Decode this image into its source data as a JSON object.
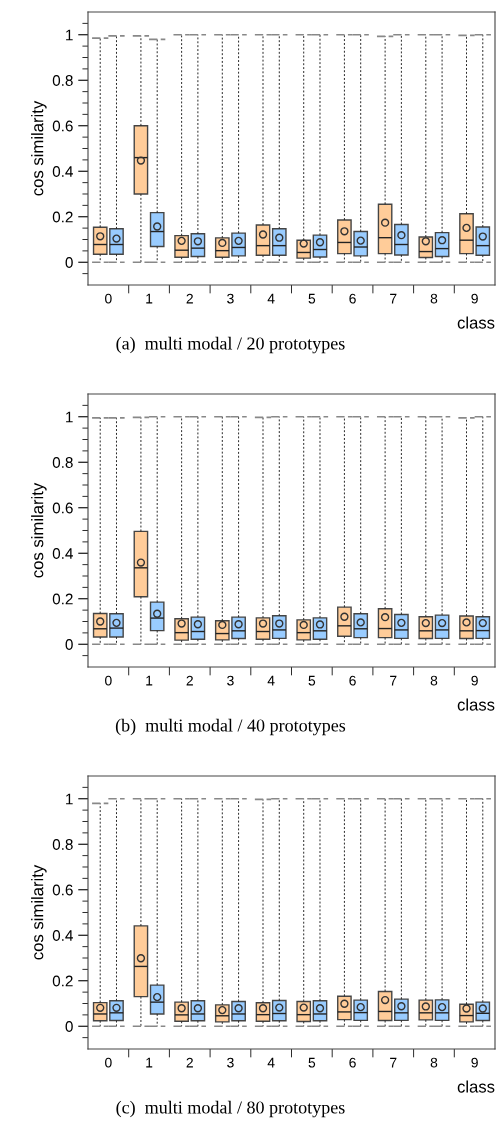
{
  "chart_data": [
    {
      "type": "box",
      "title": "(a)  multi modal / 20 prototypes",
      "xlabel": "class",
      "ylabel": "cos similarity",
      "categories": [
        "0",
        "1",
        "2",
        "3",
        "4",
        "5",
        "6",
        "7",
        "8",
        "9"
      ],
      "ylim": [
        -0.1,
        1.1
      ],
      "yticks": [
        {
          "value": -0.05,
          "label": null
        },
        0,
        {
          "value": 0.05,
          "label": null
        },
        {
          "value": 0.1,
          "label": null
        },
        {
          "value": 0.15,
          "label": null
        },
        0.2,
        {
          "value": 0.25,
          "label": null
        },
        {
          "value": 0.3,
          "label": null
        },
        {
          "value": 0.35,
          "label": null
        },
        0.4,
        {
          "value": 0.45,
          "label": null
        },
        {
          "value": 0.5,
          "label": null
        },
        {
          "value": 0.55,
          "label": null
        },
        0.6,
        {
          "value": 0.65,
          "label": null
        },
        {
          "value": 0.7,
          "label": null
        },
        {
          "value": 0.75,
          "label": null
        },
        0.8,
        {
          "value": 0.85,
          "label": null
        },
        {
          "value": 0.9,
          "label": null
        },
        {
          "value": 0.95,
          "label": null
        },
        1,
        {
          "value": 1.05,
          "label": null
        }
      ],
      "series": [
        {
          "color": "#ffcc99",
          "boxes": [
            {
              "low": 0,
              "q1": 0.035,
              "median": 0.078,
              "q3": 0.154,
              "high": 0.985,
              "mean": 0.114
            },
            {
              "low": 0,
              "q1": 0.3,
              "median": 0.46,
              "q3": 0.6,
              "high": 0.995,
              "mean": 0.447
            },
            {
              "low": 0,
              "q1": 0.022,
              "median": 0.053,
              "q3": 0.117,
              "high": 1.0,
              "mean": 0.094
            },
            {
              "low": 0,
              "q1": 0.022,
              "median": 0.051,
              "q3": 0.107,
              "high": 1.0,
              "mean": 0.085
            },
            {
              "low": 0,
              "q1": 0.031,
              "median": 0.073,
              "q3": 0.164,
              "high": 1.0,
              "mean": 0.122
            },
            {
              "low": 0,
              "q1": 0.018,
              "median": 0.043,
              "q3": 0.097,
              "high": 1.0,
              "mean": 0.082
            },
            {
              "low": 0,
              "q1": 0.038,
              "median": 0.087,
              "q3": 0.186,
              "high": 1.0,
              "mean": 0.136
            },
            {
              "low": 0,
              "q1": 0.038,
              "median": 0.108,
              "q3": 0.255,
              "high": 0.993,
              "mean": 0.174
            },
            {
              "low": 0,
              "q1": 0.021,
              "median": 0.047,
              "q3": 0.111,
              "high": 1.0,
              "mean": 0.092
            },
            {
              "low": 0,
              "q1": 0.038,
              "median": 0.097,
              "q3": 0.213,
              "high": 0.997,
              "mean": 0.151
            }
          ]
        },
        {
          "color": "#99ccff",
          "boxes": [
            {
              "low": 0,
              "q1": 0.035,
              "median": 0.078,
              "q3": 0.147,
              "high": 0.995,
              "mean": 0.104
            },
            {
              "low": 0,
              "q1": 0.069,
              "median": 0.135,
              "q3": 0.218,
              "high": 0.98,
              "mean": 0.157
            },
            {
              "low": 0,
              "q1": 0.025,
              "median": 0.062,
              "q3": 0.125,
              "high": 1.0,
              "mean": 0.092
            },
            {
              "low": 0,
              "q1": 0.028,
              "median": 0.065,
              "q3": 0.128,
              "high": 1.0,
              "mean": 0.094
            },
            {
              "low": 0,
              "q1": 0.031,
              "median": 0.073,
              "q3": 0.147,
              "high": 1.0,
              "mean": 0.108
            },
            {
              "low": 0,
              "q1": 0.023,
              "median": 0.056,
              "q3": 0.119,
              "high": 1.0,
              "mean": 0.088
            },
            {
              "low": 0,
              "q1": 0.028,
              "median": 0.067,
              "q3": 0.135,
              "high": 1.0,
              "mean": 0.095
            },
            {
              "low": 0,
              "q1": 0.032,
              "median": 0.078,
              "q3": 0.166,
              "high": 1.0,
              "mean": 0.119
            },
            {
              "low": 0,
              "q1": 0.025,
              "median": 0.06,
              "q3": 0.13,
              "high": 1.0,
              "mean": 0.097
            },
            {
              "low": 0,
              "q1": 0.031,
              "median": 0.073,
              "q3": 0.155,
              "high": 1.0,
              "mean": 0.113
            }
          ]
        }
      ]
    },
    {
      "type": "box",
      "title": "(b)  multi modal / 40 prototypes",
      "xlabel": "class",
      "ylabel": "cos similarity",
      "categories": [
        "0",
        "1",
        "2",
        "3",
        "4",
        "5",
        "6",
        "7",
        "8",
        "9"
      ],
      "ylim": [
        -0.1,
        1.1
      ],
      "yticks": [
        {
          "value": -0.05,
          "label": null
        },
        0,
        {
          "value": 0.05,
          "label": null
        },
        {
          "value": 0.1,
          "label": null
        },
        {
          "value": 0.15,
          "label": null
        },
        0.2,
        {
          "value": 0.25,
          "label": null
        },
        {
          "value": 0.3,
          "label": null
        },
        {
          "value": 0.35,
          "label": null
        },
        0.4,
        {
          "value": 0.45,
          "label": null
        },
        {
          "value": 0.5,
          "label": null
        },
        {
          "value": 0.55,
          "label": null
        },
        0.6,
        {
          "value": 0.65,
          "label": null
        },
        {
          "value": 0.7,
          "label": null
        },
        {
          "value": 0.75,
          "label": null
        },
        0.8,
        {
          "value": 0.85,
          "label": null
        },
        {
          "value": 0.9,
          "label": null
        },
        {
          "value": 0.95,
          "label": null
        },
        1,
        {
          "value": 1.05,
          "label": null
        }
      ],
      "series": [
        {
          "color": "#ffcc99",
          "boxes": [
            {
              "low": 0,
              "q1": 0.032,
              "median": 0.068,
              "q3": 0.135,
              "high": 0.995,
              "mean": 0.1
            },
            {
              "low": 0,
              "q1": 0.209,
              "median": 0.336,
              "q3": 0.496,
              "high": 0.997,
              "mean": 0.359
            },
            {
              "low": 0,
              "q1": 0.018,
              "median": 0.051,
              "q3": 0.112,
              "high": 1.0,
              "mean": 0.091
            },
            {
              "low": 0,
              "q1": 0.019,
              "median": 0.047,
              "q3": 0.103,
              "high": 1.0,
              "mean": 0.085
            },
            {
              "low": 0,
              "q1": 0.022,
              "median": 0.056,
              "q3": 0.116,
              "high": 0.997,
              "mean": 0.091
            },
            {
              "low": 0,
              "q1": 0.019,
              "median": 0.051,
              "q3": 0.107,
              "high": 1.0,
              "mean": 0.085
            },
            {
              "low": 0,
              "q1": 0.035,
              "median": 0.081,
              "q3": 0.163,
              "high": 1.0,
              "mean": 0.121
            },
            {
              "low": 0,
              "q1": 0.029,
              "median": 0.069,
              "q3": 0.156,
              "high": 1.0,
              "mean": 0.119
            },
            {
              "low": 0,
              "q1": 0.025,
              "median": 0.059,
              "q3": 0.121,
              "high": 1.0,
              "mean": 0.093
            },
            {
              "low": 0,
              "q1": 0.025,
              "median": 0.059,
              "q3": 0.124,
              "high": 0.995,
              "mean": 0.096
            }
          ]
        },
        {
          "color": "#99ccff",
          "boxes": [
            {
              "low": 0,
              "q1": 0.032,
              "median": 0.071,
              "q3": 0.134,
              "high": 0.995,
              "mean": 0.094
            },
            {
              "low": 0,
              "q1": 0.06,
              "median": 0.115,
              "q3": 0.185,
              "high": 1.0,
              "mean": 0.134
            },
            {
              "low": 0,
              "q1": 0.022,
              "median": 0.056,
              "q3": 0.119,
              "high": 1.0,
              "mean": 0.088
            },
            {
              "low": 0,
              "q1": 0.025,
              "median": 0.059,
              "q3": 0.119,
              "high": 1.0,
              "mean": 0.088
            },
            {
              "low": 0,
              "q1": 0.026,
              "median": 0.063,
              "q3": 0.125,
              "high": 1.0,
              "mean": 0.091
            },
            {
              "low": 0,
              "q1": 0.022,
              "median": 0.059,
              "q3": 0.116,
              "high": 1.0,
              "mean": 0.087
            },
            {
              "low": 0,
              "q1": 0.029,
              "median": 0.068,
              "q3": 0.134,
              "high": 1.0,
              "mean": 0.096
            },
            {
              "low": 0,
              "q1": 0.026,
              "median": 0.063,
              "q3": 0.131,
              "high": 1.0,
              "mean": 0.094
            },
            {
              "low": 0,
              "q1": 0.026,
              "median": 0.063,
              "q3": 0.128,
              "high": 1.0,
              "mean": 0.093
            },
            {
              "low": 0,
              "q1": 0.026,
              "median": 0.06,
              "q3": 0.121,
              "high": 1.0,
              "mean": 0.093
            }
          ]
        }
      ]
    },
    {
      "type": "box",
      "title": "(c)  multi modal / 80 prototypes",
      "xlabel": "class",
      "ylabel": "cos similarity",
      "categories": [
        "0",
        "1",
        "2",
        "3",
        "4",
        "5",
        "6",
        "7",
        "8",
        "9"
      ],
      "ylim": [
        -0.1,
        1.1
      ],
      "yticks": [
        {
          "value": -0.05,
          "label": null
        },
        0,
        {
          "value": 0.05,
          "label": null
        },
        {
          "value": 0.1,
          "label": null
        },
        {
          "value": 0.15,
          "label": null
        },
        0.2,
        {
          "value": 0.25,
          "label": null
        },
        {
          "value": 0.3,
          "label": null
        },
        {
          "value": 0.35,
          "label": null
        },
        0.4,
        {
          "value": 0.45,
          "label": null
        },
        {
          "value": 0.5,
          "label": null
        },
        {
          "value": 0.55,
          "label": null
        },
        0.6,
        {
          "value": 0.65,
          "label": null
        },
        {
          "value": 0.7,
          "label": null
        },
        {
          "value": 0.75,
          "label": null
        },
        0.8,
        {
          "value": 0.85,
          "label": null
        },
        {
          "value": 0.9,
          "label": null
        },
        {
          "value": 0.95,
          "label": null
        },
        1,
        {
          "value": 1.05,
          "label": null
        }
      ],
      "series": [
        {
          "color": "#ffcc99",
          "boxes": [
            {
              "low": 0,
              "q1": 0.024,
              "median": 0.054,
              "q3": 0.104,
              "high": 0.98,
              "mean": 0.081
            },
            {
              "low": 0,
              "q1": 0.13,
              "median": 0.263,
              "q3": 0.441,
              "high": 1.0,
              "mean": 0.299
            },
            {
              "low": 0,
              "q1": 0.022,
              "median": 0.05,
              "q3": 0.106,
              "high": 1.0,
              "mean": 0.079
            },
            {
              "low": 0,
              "q1": 0.019,
              "median": 0.046,
              "q3": 0.094,
              "high": 1.0,
              "mean": 0.071
            },
            {
              "low": 0,
              "q1": 0.022,
              "median": 0.051,
              "q3": 0.103,
              "high": 0.997,
              "mean": 0.079
            },
            {
              "low": 0,
              "q1": 0.021,
              "median": 0.051,
              "q3": 0.109,
              "high": 1.0,
              "mean": 0.082
            },
            {
              "low": 0,
              "q1": 0.029,
              "median": 0.063,
              "q3": 0.132,
              "high": 1.0,
              "mean": 0.099
            },
            {
              "low": 0,
              "q1": 0.025,
              "median": 0.065,
              "q3": 0.153,
              "high": 1.0,
              "mean": 0.115
            },
            {
              "low": 0,
              "q1": 0.028,
              "median": 0.059,
              "q3": 0.115,
              "high": 1.0,
              "mean": 0.087
            },
            {
              "low": 0,
              "q1": 0.019,
              "median": 0.047,
              "q3": 0.097,
              "high": 1.0,
              "mean": 0.078
            }
          ]
        },
        {
          "color": "#99ccff",
          "boxes": [
            {
              "low": 0,
              "q1": 0.025,
              "median": 0.059,
              "q3": 0.112,
              "high": 1.0,
              "mean": 0.081
            },
            {
              "low": 0,
              "q1": 0.054,
              "median": 0.106,
              "q3": 0.181,
              "high": 1.0,
              "mean": 0.128
            },
            {
              "low": 0,
              "q1": 0.024,
              "median": 0.054,
              "q3": 0.112,
              "high": 1.0,
              "mean": 0.079
            },
            {
              "low": 0,
              "q1": 0.024,
              "median": 0.054,
              "q3": 0.109,
              "high": 1.0,
              "mean": 0.079
            },
            {
              "low": 0,
              "q1": 0.024,
              "median": 0.056,
              "q3": 0.113,
              "high": 1.0,
              "mean": 0.082
            },
            {
              "low": 0,
              "q1": 0.024,
              "median": 0.054,
              "q3": 0.112,
              "high": 1.0,
              "mean": 0.079
            },
            {
              "low": 0,
              "q1": 0.026,
              "median": 0.06,
              "q3": 0.115,
              "high": 1.0,
              "mean": 0.084
            },
            {
              "low": 0,
              "q1": 0.026,
              "median": 0.059,
              "q3": 0.119,
              "high": 1.0,
              "mean": 0.088
            },
            {
              "low": 0,
              "q1": 0.026,
              "median": 0.059,
              "q3": 0.116,
              "high": 1.0,
              "mean": 0.084
            },
            {
              "low": 0,
              "q1": 0.025,
              "median": 0.057,
              "q3": 0.106,
              "high": 1.0,
              "mean": 0.078
            }
          ]
        }
      ]
    }
  ]
}
